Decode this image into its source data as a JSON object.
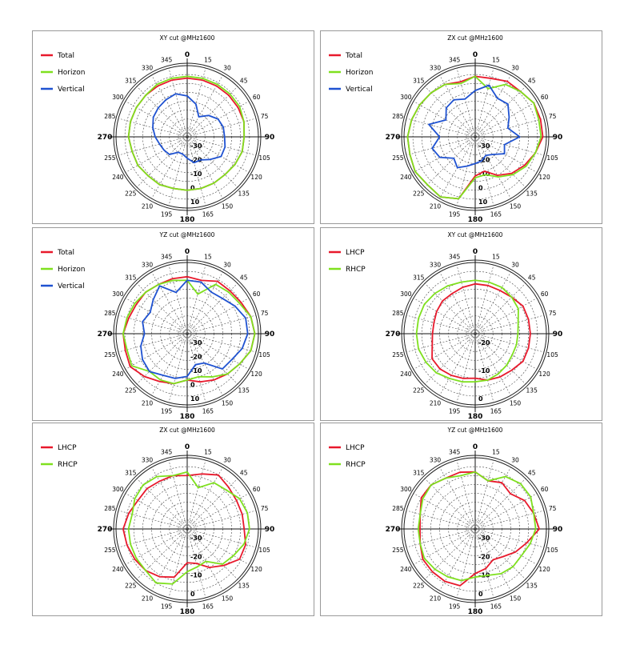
{
  "chart_data": [
    {
      "type": "polar-line",
      "title": "XY cut @MHz1600",
      "series": [
        {
          "name": "Total",
          "color": "#e8192c",
          "angles": [
            0,
            15,
            30,
            45,
            60,
            75,
            90,
            105,
            120,
            135,
            150,
            165,
            180,
            195,
            210,
            225,
            240,
            255,
            270,
            285,
            300,
            315,
            330,
            345
          ],
          "values": [
            -7,
            -7,
            -7,
            -7,
            -7,
            -7,
            -8,
            -8,
            -9,
            -10,
            -10,
            -10,
            -10,
            -10,
            -9,
            -9,
            -8,
            -8,
            -7,
            -7,
            -7,
            -7,
            -7,
            -7
          ]
        },
        {
          "name": "Horizon",
          "color": "#7fe01e",
          "angles": [
            0,
            15,
            30,
            45,
            60,
            75,
            90,
            105,
            120,
            135,
            150,
            165,
            180,
            195,
            210,
            225,
            240,
            255,
            270,
            285,
            300,
            315,
            330,
            345
          ],
          "values": [
            -6,
            -6,
            -6,
            -6,
            -6,
            -7,
            -8,
            -8,
            -9,
            -10,
            -10,
            -10,
            -10,
            -10,
            -9,
            -9,
            -8,
            -8,
            -7,
            -7,
            -7,
            -7,
            -6,
            -6
          ]
        },
        {
          "name": "Vertical",
          "color": "#1f52d1",
          "angles": [
            0,
            15,
            30,
            45,
            60,
            75,
            90,
            105,
            120,
            135,
            150,
            165,
            180,
            195,
            210,
            225,
            240,
            255,
            270,
            285,
            300,
            315,
            330,
            345
          ],
          "values": [
            -17,
            -21,
            -27,
            -23,
            -20,
            -19,
            -19,
            -18,
            -18,
            -22,
            -25,
            -25,
            -28,
            -30,
            -30,
            -26,
            -25,
            -24,
            -22,
            -20,
            -18,
            -17,
            -16,
            -15
          ]
        }
      ],
      "radial_labels": [
        "-30",
        "-20",
        "-10",
        "0",
        "10"
      ],
      "angle_labels": [
        "0",
        "15",
        "30",
        "45",
        "60",
        "75",
        "90",
        "105",
        "120",
        "135",
        "150",
        "165",
        "180",
        "195",
        "210",
        "225",
        "240",
        "255",
        "270",
        "285",
        "300",
        "315",
        "330",
        "345"
      ],
      "legend": "top-left"
    },
    {
      "type": "polar-line",
      "title": "ZX cut @MHz1600",
      "series": [
        {
          "name": "Total",
          "color": "#e8192c",
          "angles": [
            0,
            15,
            30,
            45,
            60,
            75,
            90,
            105,
            120,
            135,
            150,
            165,
            180,
            195,
            210,
            225,
            240,
            255,
            270,
            285,
            300,
            315,
            330,
            345
          ],
          "values": [
            -6,
            -6,
            -4,
            -4,
            -2,
            -2,
            -2,
            -5,
            -8,
            -11,
            -15,
            -20,
            -18,
            -4,
            -1,
            -2,
            -1,
            -2,
            -2,
            -3,
            -4,
            -5,
            -6,
            -8
          ]
        },
        {
          "name": "Horizon",
          "color": "#7fe01e",
          "angles": [
            0,
            15,
            30,
            45,
            60,
            75,
            90,
            105,
            120,
            135,
            150,
            165,
            180,
            195,
            210,
            225,
            240,
            255,
            270,
            285,
            300,
            315,
            330,
            345
          ],
          "values": [
            -6,
            -12,
            -6,
            -4,
            -2,
            -3,
            -3,
            -5,
            -7,
            -10,
            -14,
            -18,
            -17,
            -4,
            -1,
            -2,
            -1,
            -2,
            -2,
            -3,
            -4,
            -5,
            -6,
            -9
          ]
        },
        {
          "name": "Vertical",
          "color": "#1f52d1",
          "angles": [
            0,
            15,
            30,
            45,
            60,
            75,
            90,
            105,
            120,
            135,
            150,
            165,
            180,
            195,
            210,
            225,
            240,
            255,
            270,
            285,
            300,
            315,
            330,
            345
          ],
          "values": [
            -14,
            -10,
            -15,
            -14,
            -18,
            -21,
            -15,
            -23,
            -21,
            -26,
            -28,
            -26,
            -25,
            -23,
            -20,
            -23,
            -17,
            -15,
            -20,
            -13,
            -21,
            -17,
            -16,
            -18
          ]
        }
      ],
      "radial_labels": [
        "-30",
        "-20",
        "-10",
        "0",
        "10"
      ],
      "angle_labels": [
        "0",
        "15",
        "30",
        "45",
        "60",
        "75",
        "90",
        "105",
        "120",
        "135",
        "150",
        "165",
        "180",
        "195",
        "210",
        "225",
        "240",
        "255",
        "270",
        "285",
        "300",
        "315",
        "330",
        "345"
      ],
      "legend": "top-left"
    },
    {
      "type": "polar-line",
      "title": "YZ cut @MHz1600",
      "series": [
        {
          "name": "Total",
          "color": "#e8192c",
          "angles": [
            0,
            15,
            30,
            45,
            60,
            75,
            90,
            105,
            120,
            135,
            150,
            165,
            180,
            195,
            210,
            225,
            240,
            255,
            270,
            285,
            300,
            315,
            330,
            345
          ],
          "values": [
            -8,
            -9,
            -6,
            -6,
            -5,
            -3,
            -2,
            -3,
            -6,
            -8,
            -10,
            -12,
            -14,
            -11,
            -9,
            -6,
            -3,
            -4,
            -4,
            -6,
            -7,
            -7,
            -8,
            -8
          ]
        },
        {
          "name": "Horizon",
          "color": "#7fe01e",
          "angles": [
            0,
            15,
            30,
            45,
            60,
            75,
            90,
            105,
            120,
            135,
            150,
            165,
            180,
            195,
            210,
            225,
            240,
            255,
            270,
            285,
            300,
            315,
            330,
            345
          ],
          "values": [
            -10,
            -17,
            -8,
            -7,
            -6,
            -3,
            -2,
            -3,
            -6,
            -8,
            -12,
            -15,
            -14,
            -11,
            -10,
            -10,
            -4,
            -5,
            -4,
            -5,
            -6,
            -7,
            -8,
            -9
          ]
        },
        {
          "name": "Vertical",
          "color": "#1f52d1",
          "angles": [
            0,
            15,
            30,
            45,
            60,
            75,
            90,
            105,
            120,
            135,
            150,
            165,
            180,
            195,
            210,
            225,
            240,
            255,
            270,
            285,
            300,
            315,
            330,
            345
          ],
          "values": [
            -10,
            -10,
            -13,
            -12,
            -9,
            -6,
            -6,
            -8,
            -11,
            -12,
            -21,
            -22,
            -16,
            -14,
            -13,
            -10,
            -11,
            -13,
            -16,
            -14,
            -16,
            -13,
            -9,
            -16
          ]
        }
      ],
      "radial_labels": [
        "-30",
        "-20",
        "-10",
        "0",
        "10"
      ],
      "angle_labels": [
        "0",
        "15",
        "30",
        "45",
        "60",
        "75",
        "90",
        "105",
        "120",
        "135",
        "150",
        "165",
        "180",
        "195",
        "210",
        "225",
        "240",
        "255",
        "270",
        "285",
        "300",
        "315",
        "330",
        "345"
      ],
      "legend": "top-left"
    },
    {
      "type": "polar-line",
      "title": "XY cut @MHz1600",
      "series": [
        {
          "name": "LHCP",
          "color": "#e8192c",
          "angles": [
            0,
            15,
            30,
            45,
            60,
            75,
            90,
            105,
            120,
            135,
            150,
            165,
            180,
            195,
            210,
            225,
            240,
            255,
            270,
            285,
            300,
            315,
            330,
            345
          ],
          "values": [
            -12,
            -12,
            -12,
            -11,
            -9,
            -9,
            -9,
            -9,
            -9,
            -11,
            -12,
            -13,
            -15,
            -14,
            -13,
            -12,
            -12,
            -15,
            -16,
            -16,
            -15,
            -14,
            -14,
            -13
          ]
        },
        {
          "name": "RHCP",
          "color": "#7fe01e",
          "angles": [
            0,
            15,
            30,
            45,
            60,
            75,
            90,
            105,
            120,
            135,
            150,
            165,
            180,
            195,
            210,
            225,
            240,
            255,
            270,
            285,
            300,
            315,
            330,
            345
          ],
          "values": [
            -10,
            -10,
            -10,
            -11,
            -12,
            -15,
            -16,
            -16,
            -16,
            -15,
            -14,
            -13,
            -13,
            -12,
            -11,
            -9,
            -8,
            -7,
            -7,
            -7,
            -7,
            -8,
            -9,
            -10
          ]
        }
      ],
      "radial_labels": [
        "-20",
        "-10",
        "0"
      ],
      "angle_labels": [
        "0",
        "15",
        "30",
        "45",
        "60",
        "75",
        "90",
        "105",
        "120",
        "135",
        "150",
        "165",
        "180",
        "195",
        "210",
        "225",
        "240",
        "255",
        "270",
        "285",
        "300",
        "315",
        "330",
        "345"
      ],
      "legend": "top-left"
    },
    {
      "type": "polar-line",
      "title": "ZX cut @MHz1600",
      "series": [
        {
          "name": "LHCP",
          "color": "#e8192c",
          "angles": [
            0,
            15,
            30,
            45,
            60,
            75,
            90,
            105,
            120,
            135,
            150,
            165,
            180,
            195,
            210,
            225,
            240,
            255,
            270,
            285,
            300,
            315,
            330,
            345
          ],
          "values": [
            -10,
            -8,
            -5,
            -7,
            -8,
            -8,
            -8,
            -6,
            -6,
            -11,
            -15,
            -20,
            -21,
            -12,
            -9,
            -7,
            -6,
            -5,
            -4,
            -6,
            -8,
            -8,
            -9,
            -9
          ]
        },
        {
          "name": "RHCP",
          "color": "#7fe01e",
          "angles": [
            0,
            15,
            30,
            45,
            60,
            75,
            90,
            105,
            120,
            135,
            150,
            165,
            180,
            195,
            210,
            225,
            240,
            255,
            270,
            285,
            300,
            315,
            330,
            345
          ],
          "values": [
            -8,
            -16,
            -10,
            -9,
            -6,
            -5,
            -5,
            -7,
            -10,
            -12,
            -19,
            -18,
            -16,
            -8,
            -5,
            -7,
            -7,
            -7,
            -7,
            -8,
            -6,
            -5,
            -6,
            -9
          ]
        }
      ],
      "radial_labels": [
        "-30",
        "-20",
        "-10",
        "0"
      ],
      "angle_labels": [
        "0",
        "15",
        "30",
        "45",
        "60",
        "75",
        "90",
        "105",
        "120",
        "135",
        "150",
        "165",
        "180",
        "195",
        "210",
        "225",
        "240",
        "255",
        "270",
        "285",
        "300",
        "315",
        "330",
        "345"
      ],
      "legend": "top-left"
    },
    {
      "type": "polar-line",
      "title": "YZ cut @MHz1600",
      "series": [
        {
          "name": "LHCP",
          "color": "#e8192c",
          "angles": [
            0,
            15,
            30,
            45,
            60,
            75,
            90,
            105,
            120,
            135,
            150,
            165,
            180,
            195,
            210,
            225,
            240,
            255,
            270,
            285,
            300,
            315,
            330,
            345
          ],
          "values": [
            -8,
            -12,
            -10,
            -12,
            -8,
            -6,
            -4,
            -10,
            -14,
            -18,
            -20,
            -17,
            -15,
            -7,
            -6,
            -6,
            -6,
            -8,
            -9,
            -8,
            -5,
            -5,
            -7,
            -7
          ]
        },
        {
          "name": "RHCP",
          "color": "#7fe01e",
          "angles": [
            0,
            15,
            30,
            45,
            60,
            75,
            90,
            105,
            120,
            135,
            150,
            165,
            180,
            195,
            210,
            225,
            240,
            255,
            270,
            285,
            300,
            315,
            330,
            345
          ],
          "values": [
            -8,
            -12,
            -6,
            -4,
            -4,
            -6,
            -6,
            -8,
            -10,
            -10,
            -11,
            -13,
            -13,
            -10,
            -9,
            -8,
            -7,
            -8,
            -8,
            -8,
            -6,
            -5,
            -7,
            -9
          ]
        }
      ],
      "radial_labels": [
        "-30",
        "-20",
        "-10",
        "0"
      ],
      "angle_labels": [
        "0",
        "15",
        "30",
        "45",
        "60",
        "75",
        "90",
        "105",
        "120",
        "135",
        "150",
        "165",
        "180",
        "195",
        "210",
        "225",
        "240",
        "255",
        "270",
        "285",
        "300",
        "315",
        "330",
        "345"
      ],
      "legend": "top-left"
    }
  ]
}
